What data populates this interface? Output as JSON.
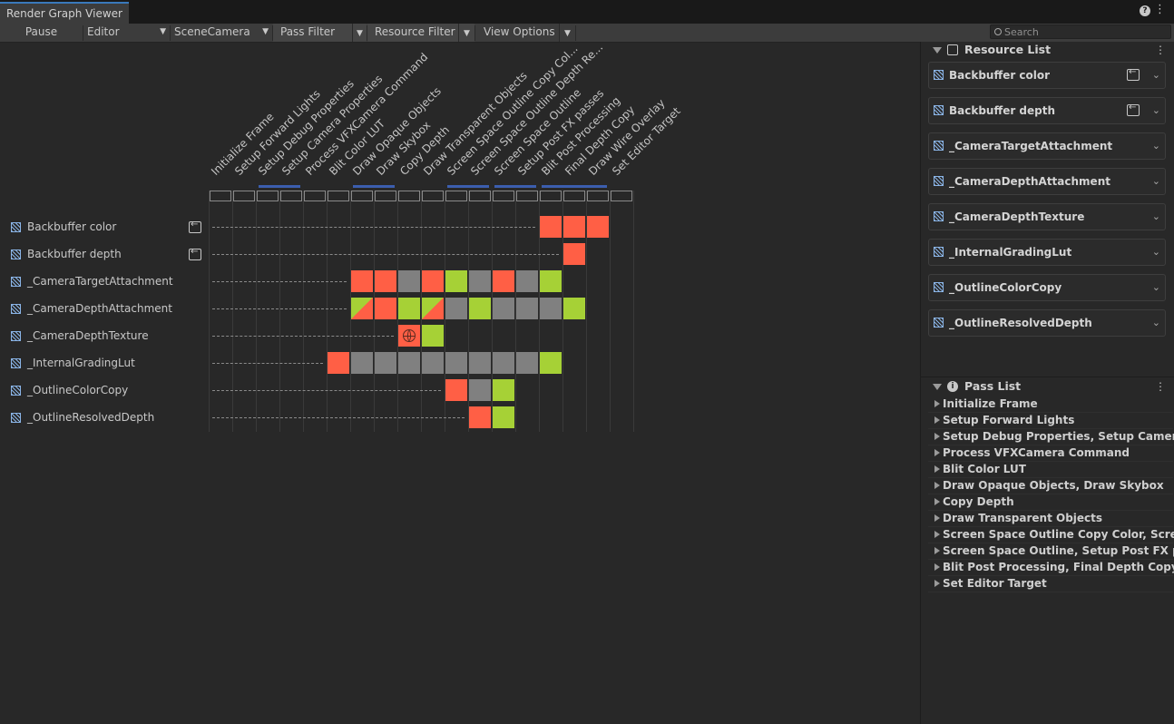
{
  "window": {
    "tab_title": "Render Graph Viewer"
  },
  "toolbar": {
    "pause_label": "Pause",
    "graph_select": "Editor",
    "camera_select": "SceneCamera",
    "pass_filter_label": "Pass Filter",
    "resource_filter_label": "Resource Filter",
    "view_options_label": "View Options",
    "search_placeholder": "Search"
  },
  "passes": [
    "Initialize Frame",
    "Setup Forward Lights",
    "Setup Debug Properties",
    "Setup Camera Properties",
    "Process VFXCamera Command",
    "Blit Color LUT",
    "Draw Opaque Objects",
    "Draw Skybox",
    "Copy Depth",
    "Draw Transparent Objects",
    "Screen Space Outline Copy Col...",
    "Screen Space Outline Depth Re...",
    "Screen Space Outline",
    "Setup Post FX passes",
    "Blit Post Processing",
    "Final Depth Copy",
    "Draw Wire Overlay",
    "Set Editor Target"
  ],
  "merged_pass_groups": [
    [
      2,
      3
    ],
    [
      6,
      7
    ],
    [
      10,
      11
    ],
    [
      12,
      13
    ],
    [
      14,
      16
    ]
  ],
  "resources": [
    {
      "name": "Backbuffer color",
      "imported": true,
      "first_use": 14,
      "cells": [
        [
          14,
          "write"
        ],
        [
          15,
          "write"
        ],
        [
          16,
          "write"
        ]
      ]
    },
    {
      "name": "Backbuffer depth",
      "imported": true,
      "first_use": 15,
      "cells": [
        [
          15,
          "write"
        ]
      ]
    },
    {
      "name": "_CameraTargetAttachment",
      "imported": false,
      "first_use": 6,
      "cells": [
        [
          6,
          "write"
        ],
        [
          7,
          "write"
        ],
        [
          8,
          "unused"
        ],
        [
          9,
          "write"
        ],
        [
          10,
          "read"
        ],
        [
          11,
          "unused"
        ],
        [
          12,
          "write"
        ],
        [
          13,
          "unused"
        ],
        [
          14,
          "read"
        ]
      ]
    },
    {
      "name": "_CameraDepthAttachment",
      "imported": false,
      "first_use": 6,
      "cells": [
        [
          6,
          "readwrite"
        ],
        [
          7,
          "write"
        ],
        [
          8,
          "read"
        ],
        [
          9,
          "readwrite"
        ],
        [
          10,
          "unused"
        ],
        [
          11,
          "read"
        ],
        [
          12,
          "unused"
        ],
        [
          13,
          "unused"
        ],
        [
          14,
          "unused"
        ],
        [
          15,
          "read"
        ]
      ]
    },
    {
      "name": "_CameraDepthTexture",
      "imported": false,
      "first_use": 8,
      "cells": [
        [
          8,
          "global"
        ],
        [
          9,
          "read"
        ]
      ]
    },
    {
      "name": "_InternalGradingLut",
      "imported": false,
      "first_use": 5,
      "cells": [
        [
          5,
          "write"
        ],
        [
          6,
          "unused"
        ],
        [
          7,
          "unused"
        ],
        [
          8,
          "unused"
        ],
        [
          9,
          "unused"
        ],
        [
          10,
          "unused"
        ],
        [
          11,
          "unused"
        ],
        [
          12,
          "unused"
        ],
        [
          13,
          "unused"
        ],
        [
          14,
          "read"
        ]
      ]
    },
    {
      "name": "_OutlineColorCopy",
      "imported": false,
      "first_use": 10,
      "cells": [
        [
          10,
          "write"
        ],
        [
          11,
          "unused"
        ],
        [
          12,
          "read"
        ]
      ]
    },
    {
      "name": "_OutlineResolvedDepth",
      "imported": false,
      "first_use": 11,
      "cells": [
        [
          11,
          "write"
        ],
        [
          12,
          "read"
        ]
      ]
    }
  ],
  "colors": {
    "write": "#ff5f45",
    "read": "#a6d136",
    "unused": "#808080",
    "merge_bar": "#3b5eae",
    "resource_icon": "#8ab4e6"
  },
  "resource_list": {
    "title": "Resource List",
    "items": [
      {
        "label": "Backbuffer color",
        "imported": true
      },
      {
        "label": "Backbuffer depth",
        "imported": true
      },
      {
        "label": "_CameraTargetAttachment",
        "imported": false
      },
      {
        "label": "_CameraDepthAttachment",
        "imported": false
      },
      {
        "label": "_CameraDepthTexture",
        "imported": false
      },
      {
        "label": "_InternalGradingLut",
        "imported": false
      },
      {
        "label": "_OutlineColorCopy",
        "imported": false
      },
      {
        "label": "_OutlineResolvedDepth",
        "imported": false
      }
    ]
  },
  "pass_list": {
    "title": "Pass List",
    "items": [
      "Initialize Frame",
      "Setup Forward Lights",
      "Setup Debug Properties, Setup Camera ...",
      "Process VFXCamera Command",
      "Blit Color LUT",
      "Draw Opaque Objects, Draw Skybox",
      "Copy Depth",
      "Draw Transparent Objects",
      "Screen Space Outline Copy Color, Scree...",
      "Screen Space Outline, Setup Post FX pas...",
      "Blit Post Processing, Final Depth Copy, D...",
      "Set Editor Target"
    ]
  }
}
